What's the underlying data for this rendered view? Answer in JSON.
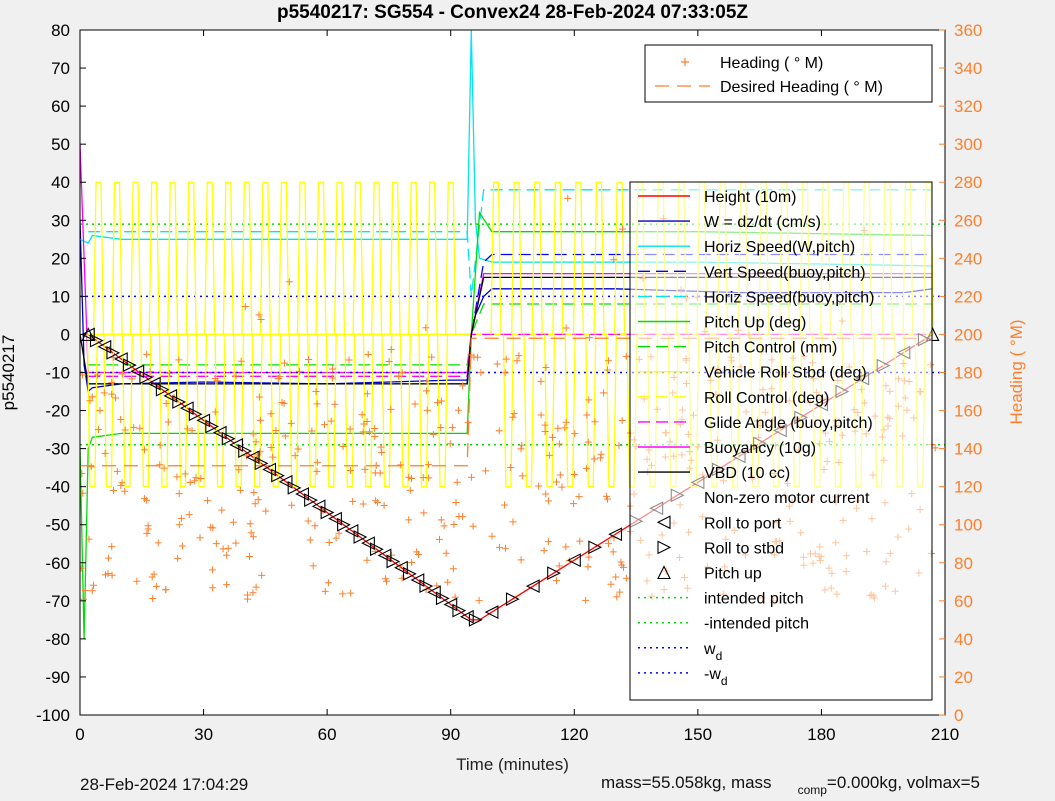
{
  "chart_data": {
    "type": "line",
    "title": "p5540217: SG554 - Convex24 28-Feb-2024 07:33:05Z",
    "xlabel": "Time (minutes)",
    "ylabel": "p5540217",
    "ylabel_right": "Heading (  °M)",
    "xlim": [
      0,
      210
    ],
    "ylim": [
      -100,
      80
    ],
    "ylim_right": [
      0,
      360
    ],
    "x_ticks": [
      "0",
      "30",
      "60",
      "90",
      "120",
      "150",
      "180",
      "210"
    ],
    "y_ticks": [
      "-100",
      "-90",
      "-80",
      "-70",
      "-60",
      "-50",
      "-40",
      "-30",
      "-20",
      "-10",
      "0",
      "10",
      "20",
      "30",
      "40",
      "50",
      "60",
      "70",
      "80"
    ],
    "y_ticks_right": [
      "0",
      "20",
      "40",
      "60",
      "80",
      "100",
      "120",
      "140",
      "160",
      "180",
      "200",
      "220",
      "240",
      "260",
      "280",
      "300",
      "320",
      "340",
      "360"
    ],
    "legend_main": [
      {
        "label": "Height (10m)",
        "color": "#ff0000",
        "style": "solid"
      },
      {
        "label": "W = dz/dt (cm/s)",
        "color": "#0000cc",
        "style": "solid"
      },
      {
        "label": "Horiz Speed(W,pitch)",
        "color": "#00e5ee",
        "style": "solid"
      },
      {
        "label": "Vert Speed(buoy,pitch)",
        "color": "#0000ff",
        "style": "dashed"
      },
      {
        "label": "Horiz Speed(buoy,pitch)",
        "color": "#00e5ee",
        "style": "dashed"
      },
      {
        "label": "Pitch Up (deg)",
        "color": "#00dd00",
        "style": "solid"
      },
      {
        "label": "Pitch Control (mm)",
        "color": "#00dd00",
        "style": "dashed"
      },
      {
        "label": "Vehicle Roll Stbd (deg)",
        "color": "#ffff00",
        "style": "solid"
      },
      {
        "label": "Roll Control (deg)",
        "color": "#ffff00",
        "style": "dashed"
      },
      {
        "label": "Glide Angle (buoy,pitch)",
        "color": "#ff00ff",
        "style": "dashed"
      },
      {
        "label": "Buoyancy (10g)",
        "color": "#ff00ff",
        "style": "solid"
      },
      {
        "label": "VBD (10 cc)",
        "color": "#000000",
        "style": "solid"
      },
      {
        "label": "Non-zero motor current",
        "color": "#000000",
        "style": "none"
      },
      {
        "label": "Roll to port",
        "color": "#000000",
        "style": "marker-left"
      },
      {
        "label": "Roll to stbd",
        "color": "#000000",
        "style": "marker-right"
      },
      {
        "label": "Pitch up",
        "color": "#000000",
        "style": "marker-up"
      },
      {
        "label": "intended pitch",
        "color": "#00dd00",
        "style": "dotted"
      },
      {
        "label": "-intended pitch",
        "color": "#00dd00",
        "style": "dotted"
      },
      {
        "label": "w",
        "sub": "d",
        "color": "#0000ff",
        "style": "dotted"
      },
      {
        "label": "-w",
        "sub": "d",
        "color": "#0000ff",
        "style": "dotted"
      }
    ],
    "legend_heading": [
      {
        "label": "Heading (  ° M)",
        "color": "#ff7f2a",
        "style": "plus"
      },
      {
        "label": "Desired Heading (    ° M)",
        "color": "#ff7f2a",
        "style": "dashed"
      }
    ],
    "series": [
      {
        "name": "Height (10m)",
        "color": "#ff0000",
        "x": [
          0,
          2,
          95,
          97,
          207
        ],
        "y": [
          0,
          0,
          -75,
          -75,
          0
        ]
      },
      {
        "name": "W = dz/dt (cm/s)",
        "color": "#0000cc",
        "x": [
          0,
          1,
          2,
          3,
          10,
          30,
          60,
          90,
          94,
          95,
          96,
          98,
          100,
          130,
          160,
          200,
          207
        ],
        "y": [
          30,
          -8,
          -15,
          -14,
          -13,
          -12.5,
          -13,
          -12,
          -12,
          0,
          5,
          10,
          12,
          12,
          11,
          11,
          12
        ]
      },
      {
        "name": "Horiz Speed(W,pitch)",
        "color": "#00e5ee",
        "x": [
          0,
          2,
          3,
          10,
          30,
          60,
          90,
          94,
          95,
          96,
          97,
          100,
          150,
          207
        ],
        "y": [
          25,
          24,
          26,
          25,
          25,
          25,
          25,
          25,
          80,
          30,
          20,
          19,
          19,
          18
        ]
      },
      {
        "name": "Vert Speed(buoy,pitch)",
        "color": "#0000ff",
        "x": [
          2,
          94,
          95,
          98,
          100,
          207
        ],
        "y": [
          -13,
          -13,
          0,
          19,
          21,
          21
        ]
      },
      {
        "name": "Horiz Speed(buoy,pitch)",
        "color": "#00e5ee",
        "x": [
          2,
          94,
          95,
          98,
          207
        ],
        "y": [
          27,
          27,
          10,
          38,
          38
        ]
      },
      {
        "name": "Pitch Up (deg)",
        "color": "#00dd00",
        "x": [
          0,
          1,
          2,
          3,
          10,
          30,
          60,
          90,
          94,
          95,
          97,
          100,
          150,
          207
        ],
        "y": [
          -30,
          -80,
          -30,
          -27,
          -26,
          -26,
          -26,
          -26,
          -26,
          0,
          32,
          27,
          27,
          26
        ]
      },
      {
        "name": "Pitch Control (mm)",
        "color": "#00dd00",
        "x": [
          2,
          94,
          95,
          98,
          207
        ],
        "y": [
          -8,
          -8,
          0,
          8,
          8
        ]
      },
      {
        "name": "Vehicle Roll Stbd (deg)",
        "color": "#ffff00",
        "x": [
          0,
          207
        ],
        "y": [
          0,
          0
        ]
      },
      {
        "name": "Roll Control (deg)",
        "color": "#ffff00",
        "x": [
          0,
          207
        ],
        "y": [
          0,
          0
        ]
      },
      {
        "name": "Glide Angle (buoy,pitch)",
        "color": "#ff00ff",
        "x": [
          2,
          94,
          95,
          98,
          207
        ],
        "y": [
          -11,
          -11,
          0,
          0,
          0
        ]
      },
      {
        "name": "Buoyancy (10g)",
        "color": "#ff00ff",
        "x": [
          0,
          2,
          94,
          95,
          98,
          207
        ],
        "y": [
          50,
          -10,
          -10,
          0,
          16,
          16
        ]
      },
      {
        "name": "VBD (10 cc)",
        "color": "#000000",
        "x": [
          0,
          2,
          94,
          95,
          98,
          207
        ],
        "y": [
          0,
          -13,
          -13,
          0,
          15,
          15
        ]
      },
      {
        "name": "intended pitch",
        "color": "#00dd00",
        "x": [
          0,
          210
        ],
        "y": [
          29,
          29
        ]
      },
      {
        "name": "-intended pitch",
        "color": "#00dd00",
        "x": [
          0,
          210
        ],
        "y": [
          -29,
          -29
        ]
      },
      {
        "name": "w d",
        "color": "#0000ff",
        "x": [
          0,
          210
        ],
        "y": [
          10,
          10
        ]
      },
      {
        "name": "-w d",
        "color": "#0000ff",
        "x": [
          0,
          210
        ],
        "y": [
          -10,
          -10
        ]
      }
    ],
    "roll_spikes": {
      "name": "Vehicle Roll Stbd (deg)",
      "color": "#ffff00",
      "positive_x": [
        4.5,
        9,
        13.5,
        18,
        22.5,
        27,
        31.5,
        36,
        40.5,
        45,
        49.5,
        54,
        58.5,
        63,
        67.5,
        72,
        76.5,
        81,
        85.5,
        90,
        101,
        106,
        111,
        116,
        121,
        126,
        131,
        136,
        141,
        146,
        151,
        156,
        161,
        166,
        171,
        176,
        181,
        186,
        191,
        196,
        201,
        206
      ],
      "positive_y": 40,
      "negative_x": [
        3,
        7,
        11.5,
        16,
        20.5,
        25,
        29.5,
        34,
        38.5,
        43,
        47.5,
        52,
        56.5,
        61,
        65.5,
        70,
        74.5,
        79,
        83.5,
        88,
        104,
        109,
        114,
        119,
        124,
        129,
        134,
        139,
        144,
        149,
        154,
        159,
        164,
        169,
        174,
        179,
        184,
        189,
        194,
        199,
        204
      ],
      "negative_y": -40
    },
    "heading_cloud": {
      "name": "Heading (  ° M)",
      "color": "#ff7f2a",
      "description_x_range": [
        0,
        208
      ],
      "y_range_right": [
        50,
        290
      ]
    },
    "desired_heading": {
      "name": "Desired Heading (    ° M)",
      "color": "#ff7f2a",
      "x": [
        0,
        94,
        95,
        207
      ],
      "y_right": [
        131,
        131,
        198,
        198
      ]
    },
    "markers": {
      "roll_to_port_x": [
        2,
        6,
        10,
        14,
        18,
        22,
        26,
        30,
        34,
        38,
        42,
        46,
        50,
        54,
        58,
        62,
        66,
        70,
        74,
        78,
        82,
        86,
        90,
        94,
        100,
        110,
        120,
        130,
        140,
        150,
        160,
        170,
        180,
        190,
        200
      ],
      "roll_to_stbd_x": [
        4,
        8,
        12,
        16,
        20,
        24,
        28,
        32,
        36,
        40,
        44,
        48,
        52,
        56,
        60,
        64,
        68,
        72,
        76,
        80,
        84,
        88,
        92,
        96,
        105,
        115,
        125,
        135,
        145,
        155,
        165,
        175,
        185,
        195,
        205
      ],
      "pitch_up_x": [
        2,
        207
      ]
    }
  },
  "footer": {
    "timestamp": "28-Feb-2024 17:04:29",
    "mass_text_a": "mass=55.058kg, mass",
    "mass_sub": "comp",
    "mass_text_b": "=0.000kg, volmax=5"
  }
}
